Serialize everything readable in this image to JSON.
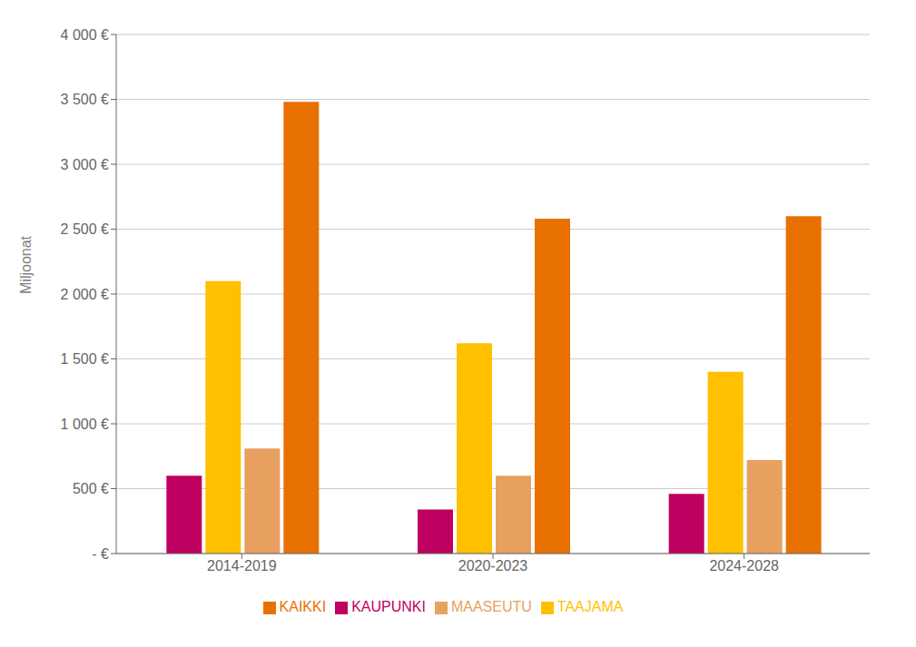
{
  "chart_data": {
    "type": "bar",
    "categories": [
      "2014-2019",
      "2020-2023",
      "2024-2028"
    ],
    "series": [
      {
        "name": "KAUPUNKI",
        "color": "#BF0060",
        "values": [
          600,
          340,
          460
        ]
      },
      {
        "name": "TAAJAMA",
        "color": "#FFC000",
        "values": [
          2100,
          1620,
          1400
        ]
      },
      {
        "name": "MAASEUTU",
        "color": "#E8A060",
        "values": [
          810,
          600,
          720
        ]
      },
      {
        "name": "KAIKKI",
        "color": "#E87000",
        "values": [
          3480,
          2580,
          2600
        ]
      }
    ],
    "ylabel": "Miljoonat",
    "ylim": [
      0,
      4000
    ],
    "yticks": [
      {
        "value": 0,
        "label": "- €"
      },
      {
        "value": 500,
        "label": "500 €"
      },
      {
        "value": 1000,
        "label": "1 000 €"
      },
      {
        "value": 1500,
        "label": "1 500 €"
      },
      {
        "value": 2000,
        "label": "2 000 €"
      },
      {
        "value": 2500,
        "label": "2 500 €"
      },
      {
        "value": 3000,
        "label": "3 000 €"
      },
      {
        "value": 3500,
        "label": "3 500 €"
      },
      {
        "value": 4000,
        "label": "4 000 €"
      }
    ],
    "grid": true,
    "legend": "bottom"
  }
}
